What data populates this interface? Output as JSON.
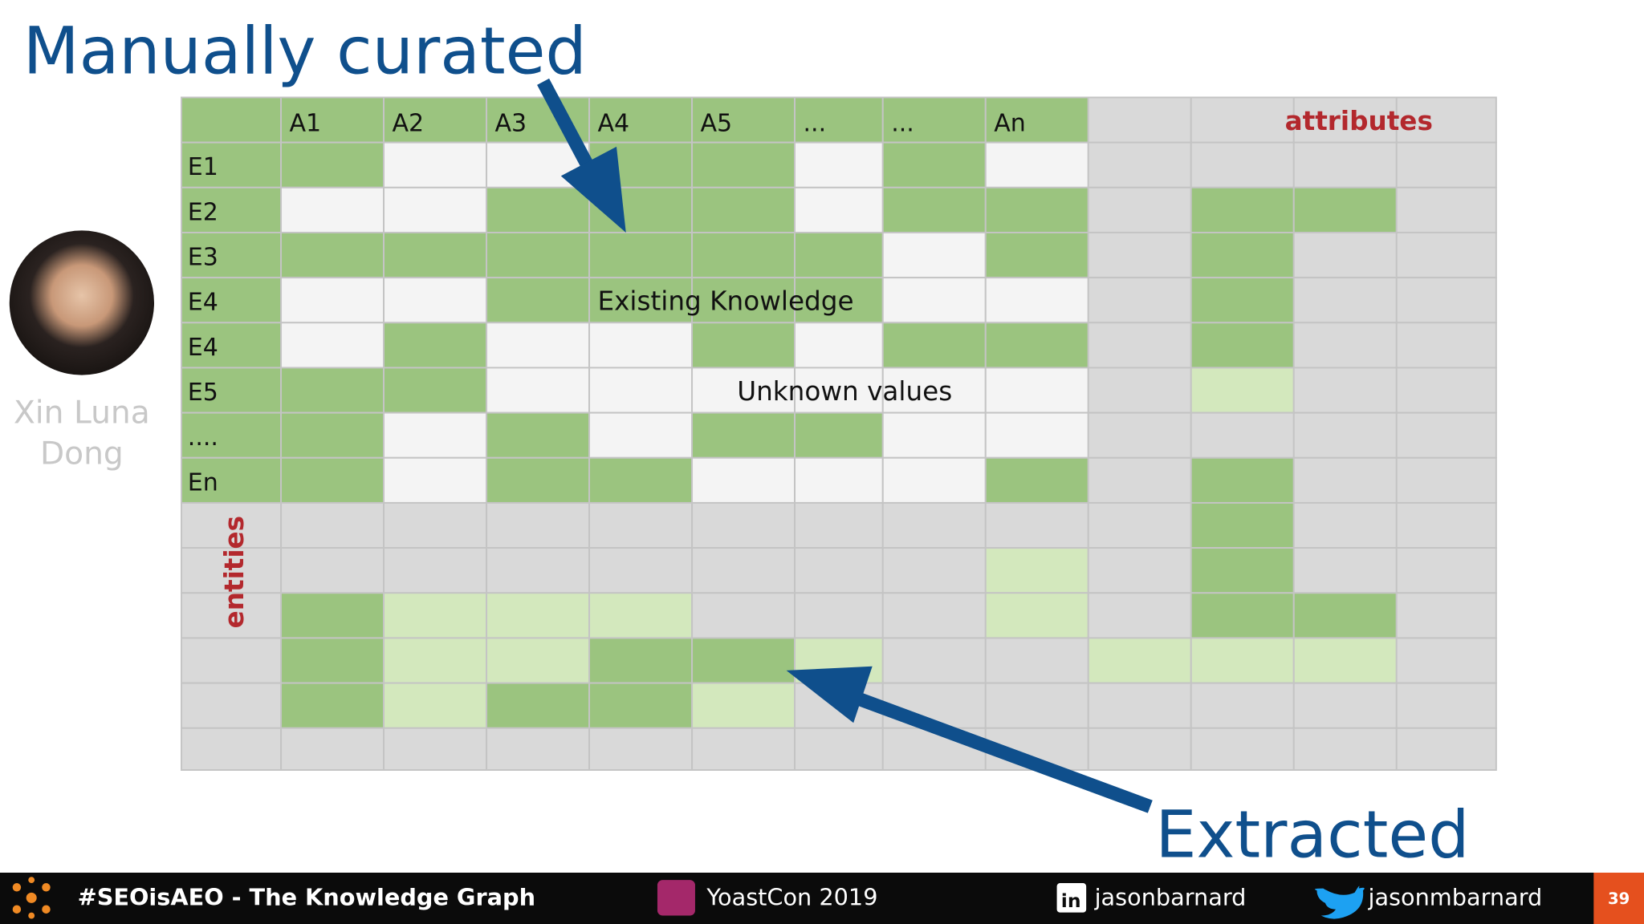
{
  "header": {
    "title": "Manually curated"
  },
  "table": {
    "columns": [
      "A1",
      "A2",
      "A3",
      "A4",
      "A5",
      "...",
      "...",
      "An"
    ],
    "attributes_label": "attributes",
    "rows": [
      "E1",
      "E2",
      "E3",
      "E4",
      "E4",
      "E5",
      "....",
      "En"
    ],
    "entities_label": "entities",
    "existing_label": "Existing Knowledge",
    "unknown_label": "Unknown values"
  },
  "speaker": {
    "name": "Xin Luna Dong"
  },
  "extracted_label": "Extracted",
  "footer": {
    "hashtag": "#SEOisAEO - The Knowledge Graph",
    "event": "YoastCon 2019",
    "linkedin": "jasonbarnard",
    "twitter": "jasonmbarnard",
    "page": "39"
  }
}
